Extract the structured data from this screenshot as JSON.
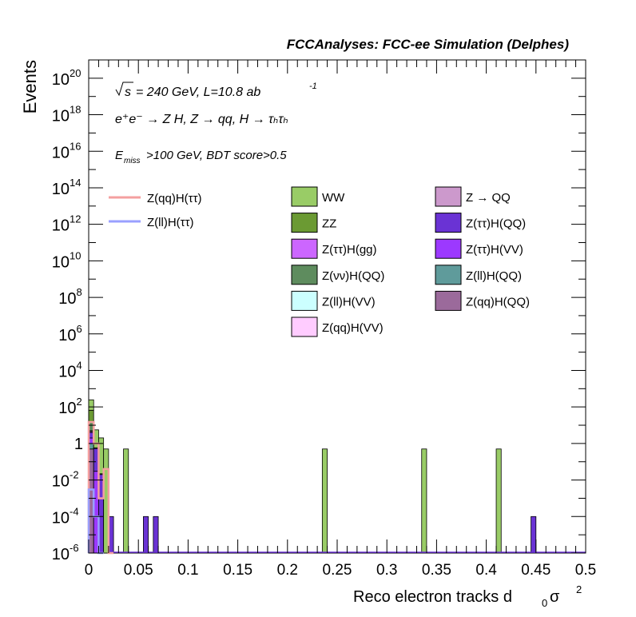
{
  "chart_data": {
    "type": "bar",
    "stacked": true,
    "title": "FCCAnalyses: FCC-ee Simulation (Delphes)",
    "annotations": {
      "line1_prefix": "s",
      "line1_rest": "= 240 GeV, L=10.8 ab",
      "line1_sup": "-1",
      "line2": "e⁺e⁻ → Z H, Z → qq, H → τₕτₕ",
      "line3_E": "E",
      "line3_sub": "miss",
      "line3_rest": ">100 GeV, BDT score>0.5"
    },
    "xlabel": "Reco electron tracks d",
    "xlabel_sub": "0",
    "xlabel_tail": " σ",
    "xlabel_sup": "2",
    "ylabel": "Events",
    "xlim": [
      0,
      0.5
    ],
    "ylim": [
      1e-06,
      1e+21
    ],
    "yscale": "log",
    "x_ticks": [
      {
        "v": 0,
        "label": "0"
      },
      {
        "v": 0.05,
        "label": "0.05"
      },
      {
        "v": 0.1,
        "label": "0.1"
      },
      {
        "v": 0.15,
        "label": "0.15"
      },
      {
        "v": 0.2,
        "label": "0.2"
      },
      {
        "v": 0.25,
        "label": "0.25"
      },
      {
        "v": 0.3,
        "label": "0.3"
      },
      {
        "v": 0.35,
        "label": "0.35"
      },
      {
        "v": 0.4,
        "label": "0.4"
      },
      {
        "v": 0.45,
        "label": "0.45"
      },
      {
        "v": 0.5,
        "label": "0.5"
      }
    ],
    "y_ticks": [
      {
        "exp": -6,
        "base": "10",
        "sup": "-6"
      },
      {
        "exp": -4,
        "base": "10",
        "sup": "-4"
      },
      {
        "exp": -2,
        "base": "10",
        "sup": "-2"
      },
      {
        "exp": 0,
        "base": "1",
        "sup": ""
      },
      {
        "exp": 2,
        "base": "10",
        "sup": "2"
      },
      {
        "exp": 4,
        "base": "10",
        "sup": "4"
      },
      {
        "exp": 6,
        "base": "10",
        "sup": "6"
      },
      {
        "exp": 8,
        "base": "10",
        "sup": "8"
      },
      {
        "exp": 10,
        "base": "10",
        "sup": "10"
      },
      {
        "exp": 12,
        "base": "10",
        "sup": "12"
      },
      {
        "exp": 14,
        "base": "10",
        "sup": "14"
      },
      {
        "exp": 16,
        "base": "10",
        "sup": "16"
      },
      {
        "exp": 18,
        "base": "10",
        "sup": "18"
      },
      {
        "exp": 20,
        "base": "10",
        "sup": "20"
      }
    ],
    "bin_width": 0.005,
    "background_series": [
      {
        "name": "Z(qq)H(QQ)",
        "color": "#9b6a9b",
        "bins": [
          {
            "x": 0.0,
            "y": 0.5
          }
        ]
      },
      {
        "name": "Z(ll)H(QQ)",
        "color": "#5f9b9b",
        "bins": [
          {
            "x": 0.0,
            "y": 0.5
          }
        ]
      },
      {
        "name": "Z(ττ)H(VV)",
        "color": "#9c39ff",
        "bins": [
          {
            "x": 0.0,
            "y": 1
          },
          {
            "x": 0.005,
            "y": 0.03
          }
        ]
      },
      {
        "name": "Z(ττ)H(QQ)",
        "color": "#6a33d4",
        "bins": [
          {
            "x": 0.0,
            "y": 2
          },
          {
            "x": 0.005,
            "y": 0.5
          },
          {
            "x": 0.01,
            "y": 0.02
          },
          {
            "x": 0.02,
            "y": 0.0001
          },
          {
            "x": 0.055,
            "y": 0.0001
          },
          {
            "x": 0.065,
            "y": 0.0001
          },
          {
            "x": 0.445,
            "y": 0.0001
          }
        ]
      },
      {
        "name": "Z → QQ",
        "color": "#cc99cc",
        "bins": [
          {
            "x": 0.0,
            "y": 0.5
          }
        ]
      },
      {
        "name": "Z(qq)H(VV)",
        "color": "#ffccff",
        "bins": [
          {
            "x": 0.0,
            "y": 0.5
          }
        ]
      },
      {
        "name": "Z(ll)H(VV)",
        "color": "#ccffff",
        "bins": [
          {
            "x": 0.005,
            "y": 0.05
          },
          {
            "x": 0.01,
            "y": 0.002
          }
        ]
      },
      {
        "name": "Z(νν)H(QQ)",
        "color": "#5e8c5e",
        "bins": [
          {
            "x": 0.0,
            "y": 10
          }
        ]
      },
      {
        "name": "Z(ττ)H(gg)",
        "color": "#cc66ff",
        "bins": [
          {
            "x": 0.0,
            "y": 1
          }
        ]
      },
      {
        "name": "ZZ",
        "color": "#6b9a33",
        "bins": [
          {
            "x": 0.0,
            "y": 50
          }
        ]
      },
      {
        "name": "WW",
        "color": "#99cc66",
        "bins": [
          {
            "x": 0.0,
            "y": 180
          },
          {
            "x": 0.005,
            "y": 5
          },
          {
            "x": 0.01,
            "y": 2
          },
          {
            "x": 0.015,
            "y": 0.5
          },
          {
            "x": 0.035,
            "y": 0.5
          },
          {
            "x": 0.235,
            "y": 0.5
          },
          {
            "x": 0.335,
            "y": 0.5
          },
          {
            "x": 0.41,
            "y": 0.5
          }
        ]
      }
    ],
    "signal_series": [
      {
        "name": "Z(qq)H(ττ)",
        "color": "#f4a0a0",
        "bins": [
          {
            "x": 0.0,
            "y": 15
          },
          {
            "x": 0.005,
            "y": 1
          },
          {
            "x": 0.01,
            "y": 0.001
          },
          {
            "x": 0.015,
            "y": 0.04
          },
          {
            "x": 0.02,
            "y": 1e-06
          }
        ]
      },
      {
        "name": "Z(ll)H(ττ)",
        "color": "#9aa0ff",
        "bins": [
          {
            "x": 0.0,
            "y": 0.003
          },
          {
            "x": 0.005,
            "y": 0.0001
          },
          {
            "x": 0.01,
            "y": 1e-06
          }
        ]
      }
    ],
    "legend": {
      "signal": [
        {
          "name": "Z(qq)H(ττ)",
          "color": "#f4a0a0"
        },
        {
          "name": "Z(ll)H(ττ)",
          "color": "#9aa0ff"
        }
      ],
      "col2": [
        {
          "name": "WW",
          "color": "#99cc66"
        },
        {
          "name": "ZZ",
          "color": "#6b9a33"
        },
        {
          "name": "Z(ττ)H(gg)",
          "color": "#cc66ff"
        },
        {
          "name": "Z(νν)H(QQ)",
          "color": "#5e8c5e"
        },
        {
          "name": "Z(ll)H(VV)",
          "color": "#ccffff"
        },
        {
          "name": "Z(qq)H(VV)",
          "color": "#ffccff"
        }
      ],
      "col3": [
        {
          "name": "Z → QQ",
          "color": "#cc99cc"
        },
        {
          "name": "Z(ττ)H(QQ)",
          "color": "#6a33d4"
        },
        {
          "name": "Z(ττ)H(VV)",
          "color": "#9c39ff"
        },
        {
          "name": "Z(ll)H(QQ)",
          "color": "#5f9b9b"
        },
        {
          "name": "Z(qq)H(QQ)",
          "color": "#9b6a9b"
        }
      ]
    }
  }
}
